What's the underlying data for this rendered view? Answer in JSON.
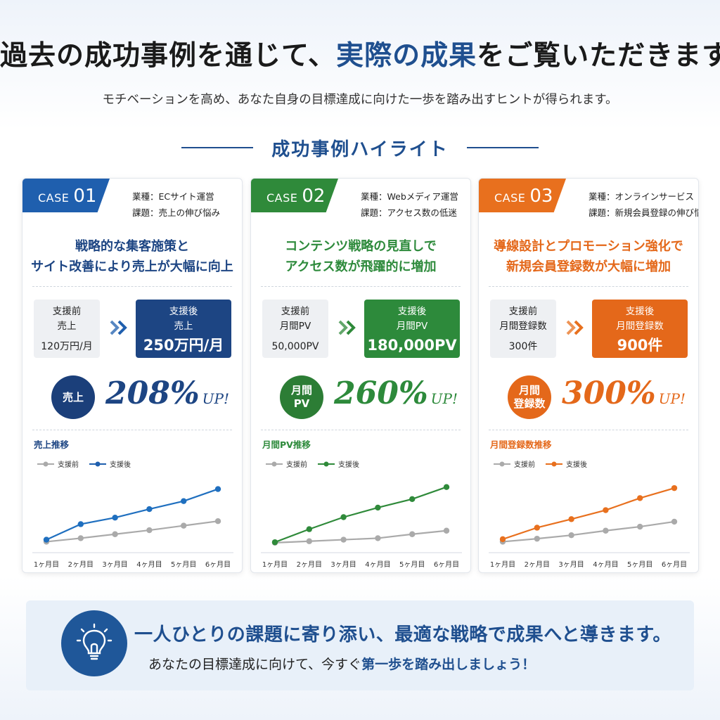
{
  "header": {
    "title_part1": "過去の成功事例を通じて、",
    "title_highlight": "実際の成果",
    "title_part2": "をご覧いただきます。",
    "subtitle": "モチベーションを高め、あなた自身の目標達成に向けた一歩を踏み出すヒントが得られます。"
  },
  "section_title": "成功事例ハイライト",
  "cases": [
    {
      "case_word": "CASE",
      "case_num": "01",
      "industry": "業種：ECサイト運営",
      "issue": "課題：売上の伸び悩み",
      "headline_1": "戦略的な集客施策と",
      "headline_2": "サイト改善により売上が大幅に向上",
      "before_label_1": "支援前",
      "before_label_2": "売上",
      "before_value": "120万円/月",
      "after_label_1": "支援後",
      "after_label_2": "売上",
      "after_value": "250万円/月",
      "metric_circle_1": "売上",
      "metric_circle_2": "",
      "percent": "208%",
      "up": "UP!",
      "chart_title": "売上推移",
      "legend_before": "支援前",
      "legend_after": "支援後",
      "color": "#1f5fae",
      "dark": "#1d4583",
      "circle": "#1b3f7a"
    },
    {
      "case_word": "CASE",
      "case_num": "02",
      "industry": "業種：Webメディア運営",
      "issue": "課題：アクセス数の低迷",
      "headline_1": "コンテンツ戦略の見直しで",
      "headline_2": "アクセス数が飛躍的に増加",
      "before_label_1": "支援前",
      "before_label_2": "月間PV",
      "before_value": "50,000PV",
      "after_label_1": "支援後",
      "after_label_2": "月間PV",
      "after_value": "180,000PV",
      "metric_circle_1": "月間",
      "metric_circle_2": "PV",
      "percent": "260%",
      "up": "UP!",
      "chart_title": "月間PV推移",
      "legend_before": "支援前",
      "legend_after": "支援後",
      "color": "#2f8a3a",
      "dark": "#2d8a3b",
      "circle": "#2c7d35"
    },
    {
      "case_word": "CASE",
      "case_num": "03",
      "industry": "業種：オンラインサービス",
      "issue": "課題：新規会員登録の伸び悩み",
      "headline_1": "導線設計とプロモーション強化で",
      "headline_2": "新規会員登録数が大幅に増加",
      "before_label_1": "支援前",
      "before_label_2": "月間登録数",
      "before_value": "300件",
      "after_label_1": "支援後",
      "after_label_2": "月間登録数",
      "after_value": "900件",
      "metric_circle_1": "月間",
      "metric_circle_2": "登録数",
      "percent": "300%",
      "up": "UP!",
      "chart_title": "月間登録数推移",
      "legend_before": "支援前",
      "legend_after": "支援後",
      "color": "#e8701e",
      "dark": "#e4681a",
      "circle": "#e4681a"
    }
  ],
  "chart_data": [
    {
      "type": "line",
      "title": "売上推移",
      "categories": [
        "1ヶ月目",
        "2ヶ月目",
        "3ヶ月目",
        "4ヶ月目",
        "5ヶ月目",
        "6ヶ月目"
      ],
      "series": [
        {
          "name": "支援前",
          "values": [
            5,
            12,
            20,
            28,
            37,
            46
          ],
          "color": "#aaaaaa"
        },
        {
          "name": "支援後",
          "values": [
            9,
            40,
            53,
            70,
            86,
            110
          ],
          "color": "#1f6fbf"
        }
      ],
      "ylim": [
        0,
        115
      ]
    },
    {
      "type": "line",
      "title": "月間PV推移",
      "categories": [
        "1ヶ月目",
        "2ヶ月目",
        "3ヶ月目",
        "4ヶ月目",
        "5ヶ月目",
        "6ヶ月目"
      ],
      "series": [
        {
          "name": "支援前",
          "values": [
            3,
            6,
            9,
            12,
            20,
            27
          ],
          "color": "#aaaaaa"
        },
        {
          "name": "支援後",
          "values": [
            4,
            30,
            54,
            73,
            90,
            114
          ],
          "color": "#2f8a3a"
        }
      ],
      "ylim": [
        0,
        115
      ]
    },
    {
      "type": "line",
      "title": "月間登録数推移",
      "categories": [
        "1ヶ月目",
        "2ヶ月目",
        "3ヶ月目",
        "4ヶ月目",
        "5ヶ月目",
        "6ヶ月目"
      ],
      "series": [
        {
          "name": "支援前",
          "values": [
            5,
            11,
            18,
            27,
            35,
            45
          ],
          "color": "#aaaaaa"
        },
        {
          "name": "支援後",
          "values": [
            10,
            33,
            50,
            68,
            92,
            112
          ],
          "color": "#e8701e"
        }
      ],
      "ylim": [
        0,
        115
      ]
    }
  ],
  "banner": {
    "main": "一人ひとりの課題に寄り添い、最適な戦略で成果へと導きます。",
    "sub_part1": "あなたの目標達成に向けて、今すぐ",
    "sub_highlight": "第一歩を踏み出しましょう！",
    "icon": "lightbulb-icon"
  }
}
